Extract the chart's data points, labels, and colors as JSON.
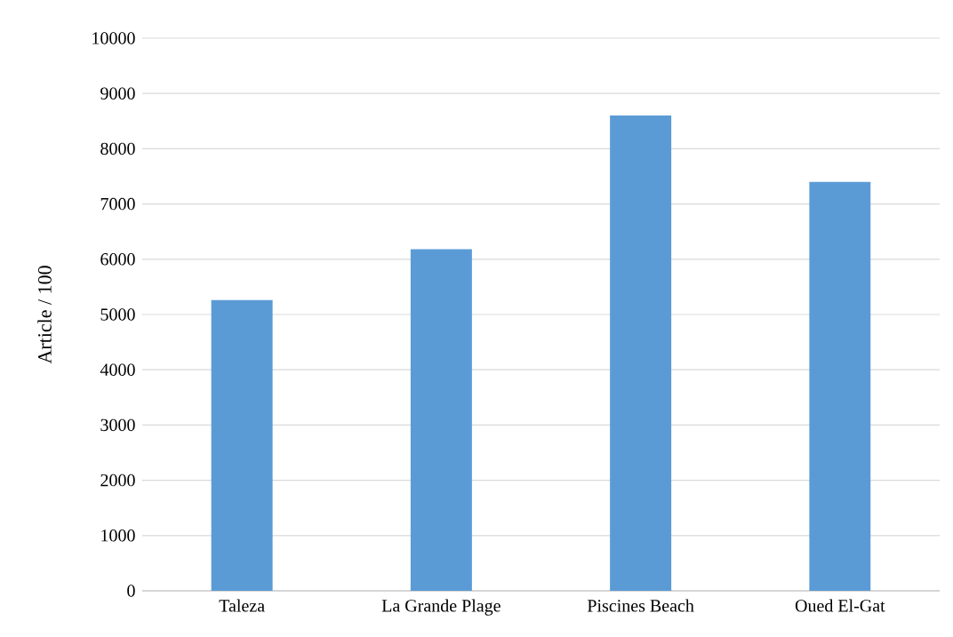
{
  "chart_data": {
    "type": "bar",
    "ylabel": "Article / 100",
    "categories": [
      "Taleza",
      "La Grande Plage",
      "Piscines Beach",
      "Oued El-Gat"
    ],
    "values": [
      5260,
      6180,
      8600,
      7400
    ],
    "color": "#5b9bd5",
    "ylim": [
      0,
      10000
    ],
    "yticks": [
      0,
      1000,
      2000,
      3000,
      4000,
      5000,
      6000,
      7000,
      8000,
      9000,
      10000
    ],
    "grid": "y"
  }
}
